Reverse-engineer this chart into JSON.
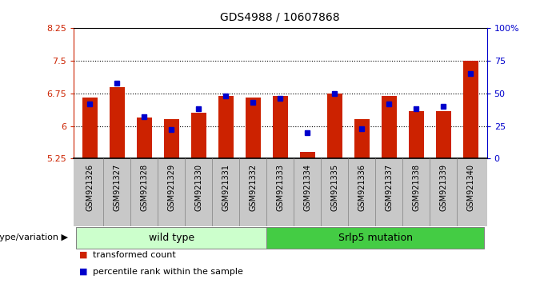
{
  "title": "GDS4988 / 10607868",
  "samples": [
    "GSM921326",
    "GSM921327",
    "GSM921328",
    "GSM921329",
    "GSM921330",
    "GSM921331",
    "GSM921332",
    "GSM921333",
    "GSM921334",
    "GSM921335",
    "GSM921336",
    "GSM921337",
    "GSM921338",
    "GSM921339",
    "GSM921340"
  ],
  "red_values": [
    6.65,
    6.9,
    6.2,
    6.15,
    6.3,
    6.7,
    6.65,
    6.7,
    5.4,
    6.75,
    6.15,
    6.7,
    6.35,
    6.35,
    7.5
  ],
  "blue_values": [
    42,
    58,
    32,
    22,
    38,
    48,
    43,
    46,
    20,
    50,
    23,
    42,
    38,
    40,
    65
  ],
  "ymin": 5.25,
  "ymax": 8.25,
  "yticks": [
    5.25,
    6.0,
    6.75,
    7.5,
    8.25
  ],
  "ytick_labels": [
    "5.25",
    "6",
    "6.75",
    "7.5",
    "8.25"
  ],
  "right_yticks": [
    0,
    25,
    50,
    75,
    100
  ],
  "right_ytick_labels": [
    "0",
    "25",
    "50",
    "75",
    "100%"
  ],
  "dotted_lines": [
    6.0,
    6.75,
    7.5
  ],
  "wild_type_count": 7,
  "mutation_count": 8,
  "wild_type_label": "wild type",
  "mutation_label": "Srlp5 mutation",
  "group_label": "genotype/variation",
  "legend_red": "transformed count",
  "legend_blue": "percentile rank within the sample",
  "bar_color": "#CC2200",
  "blue_color": "#0000CC",
  "wild_type_bg": "#CCFFCC",
  "mutation_bg": "#44CC44",
  "tick_area_bg": "#C8C8C8",
  "bar_width": 0.55
}
